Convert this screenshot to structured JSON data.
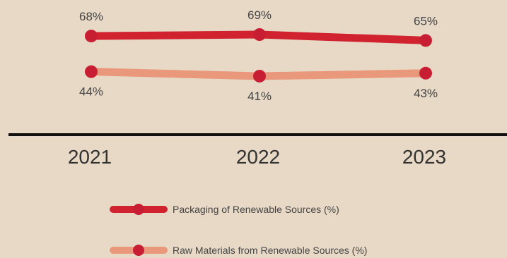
{
  "chart_data": {
    "type": "line",
    "categories": [
      "2021",
      "2022",
      "2023"
    ],
    "series": [
      {
        "name": "Packaging of Renewable Sources (%)",
        "values": [
          68,
          69,
          65
        ],
        "labels": [
          "68%",
          "69%",
          "65%"
        ],
        "color": "#d0232f"
      },
      {
        "name": "Raw Materials from Renewable Sources (%)",
        "values": [
          44,
          41,
          43
        ],
        "labels": [
          "44%",
          "41%",
          "43%"
        ],
        "color": "#e9987b"
      }
    ],
    "ylim": [
      35,
      75
    ],
    "grid": false,
    "legend_position": "bottom",
    "colors": {
      "background": "#e8d9c6",
      "axis": "#111111",
      "marker": "#c81e34"
    }
  }
}
